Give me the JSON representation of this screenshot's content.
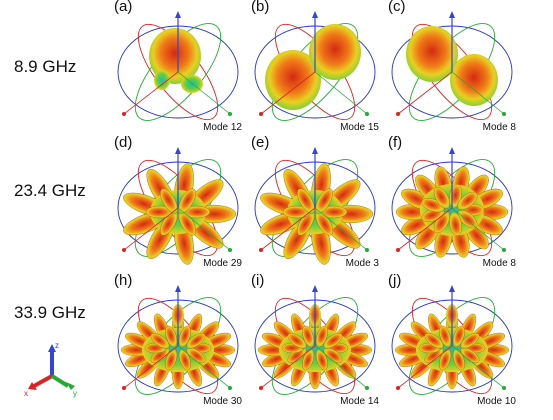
{
  "frequencies": [
    "8.9 GHz",
    "23.4 GHz",
    "33.9 GHz"
  ],
  "panels": [
    {
      "label": "(a)",
      "mode": "Mode 12",
      "pattern": "single-lobe"
    },
    {
      "label": "(b)",
      "mode": "Mode 15",
      "pattern": "two-lobes"
    },
    {
      "label": "(c)",
      "mode": "Mode 8",
      "pattern": "two-lobes-mirrored"
    },
    {
      "label": "(d)",
      "mode": "Mode 29",
      "pattern": "multi-lobe"
    },
    {
      "label": "(e)",
      "mode": "Mode 3",
      "pattern": "multi-lobe"
    },
    {
      "label": "(f)",
      "mode": "Mode 8",
      "pattern": "many-lobes"
    },
    {
      "label": "(h)",
      "mode": "Mode 30",
      "pattern": "many-lobes-flat"
    },
    {
      "label": "(i)",
      "mode": "Mode 14",
      "pattern": "many-lobes-flat"
    },
    {
      "label": "(j)",
      "mode": "Mode 10",
      "pattern": "many-lobes-flat"
    }
  ],
  "triad": {
    "x": "x",
    "y": "y",
    "z": "z"
  },
  "colors": {
    "ring_blue": "#2233cc",
    "ring_red": "#dd2222",
    "ring_green": "#22aa33",
    "lobe_red": "#d42a12",
    "lobe_orange": "#f07a18",
    "lobe_yellow": "#e8d020",
    "lobe_green": "#5ed040",
    "core_cyan": "#25b8b0",
    "axis_blue": "#3344dd"
  }
}
